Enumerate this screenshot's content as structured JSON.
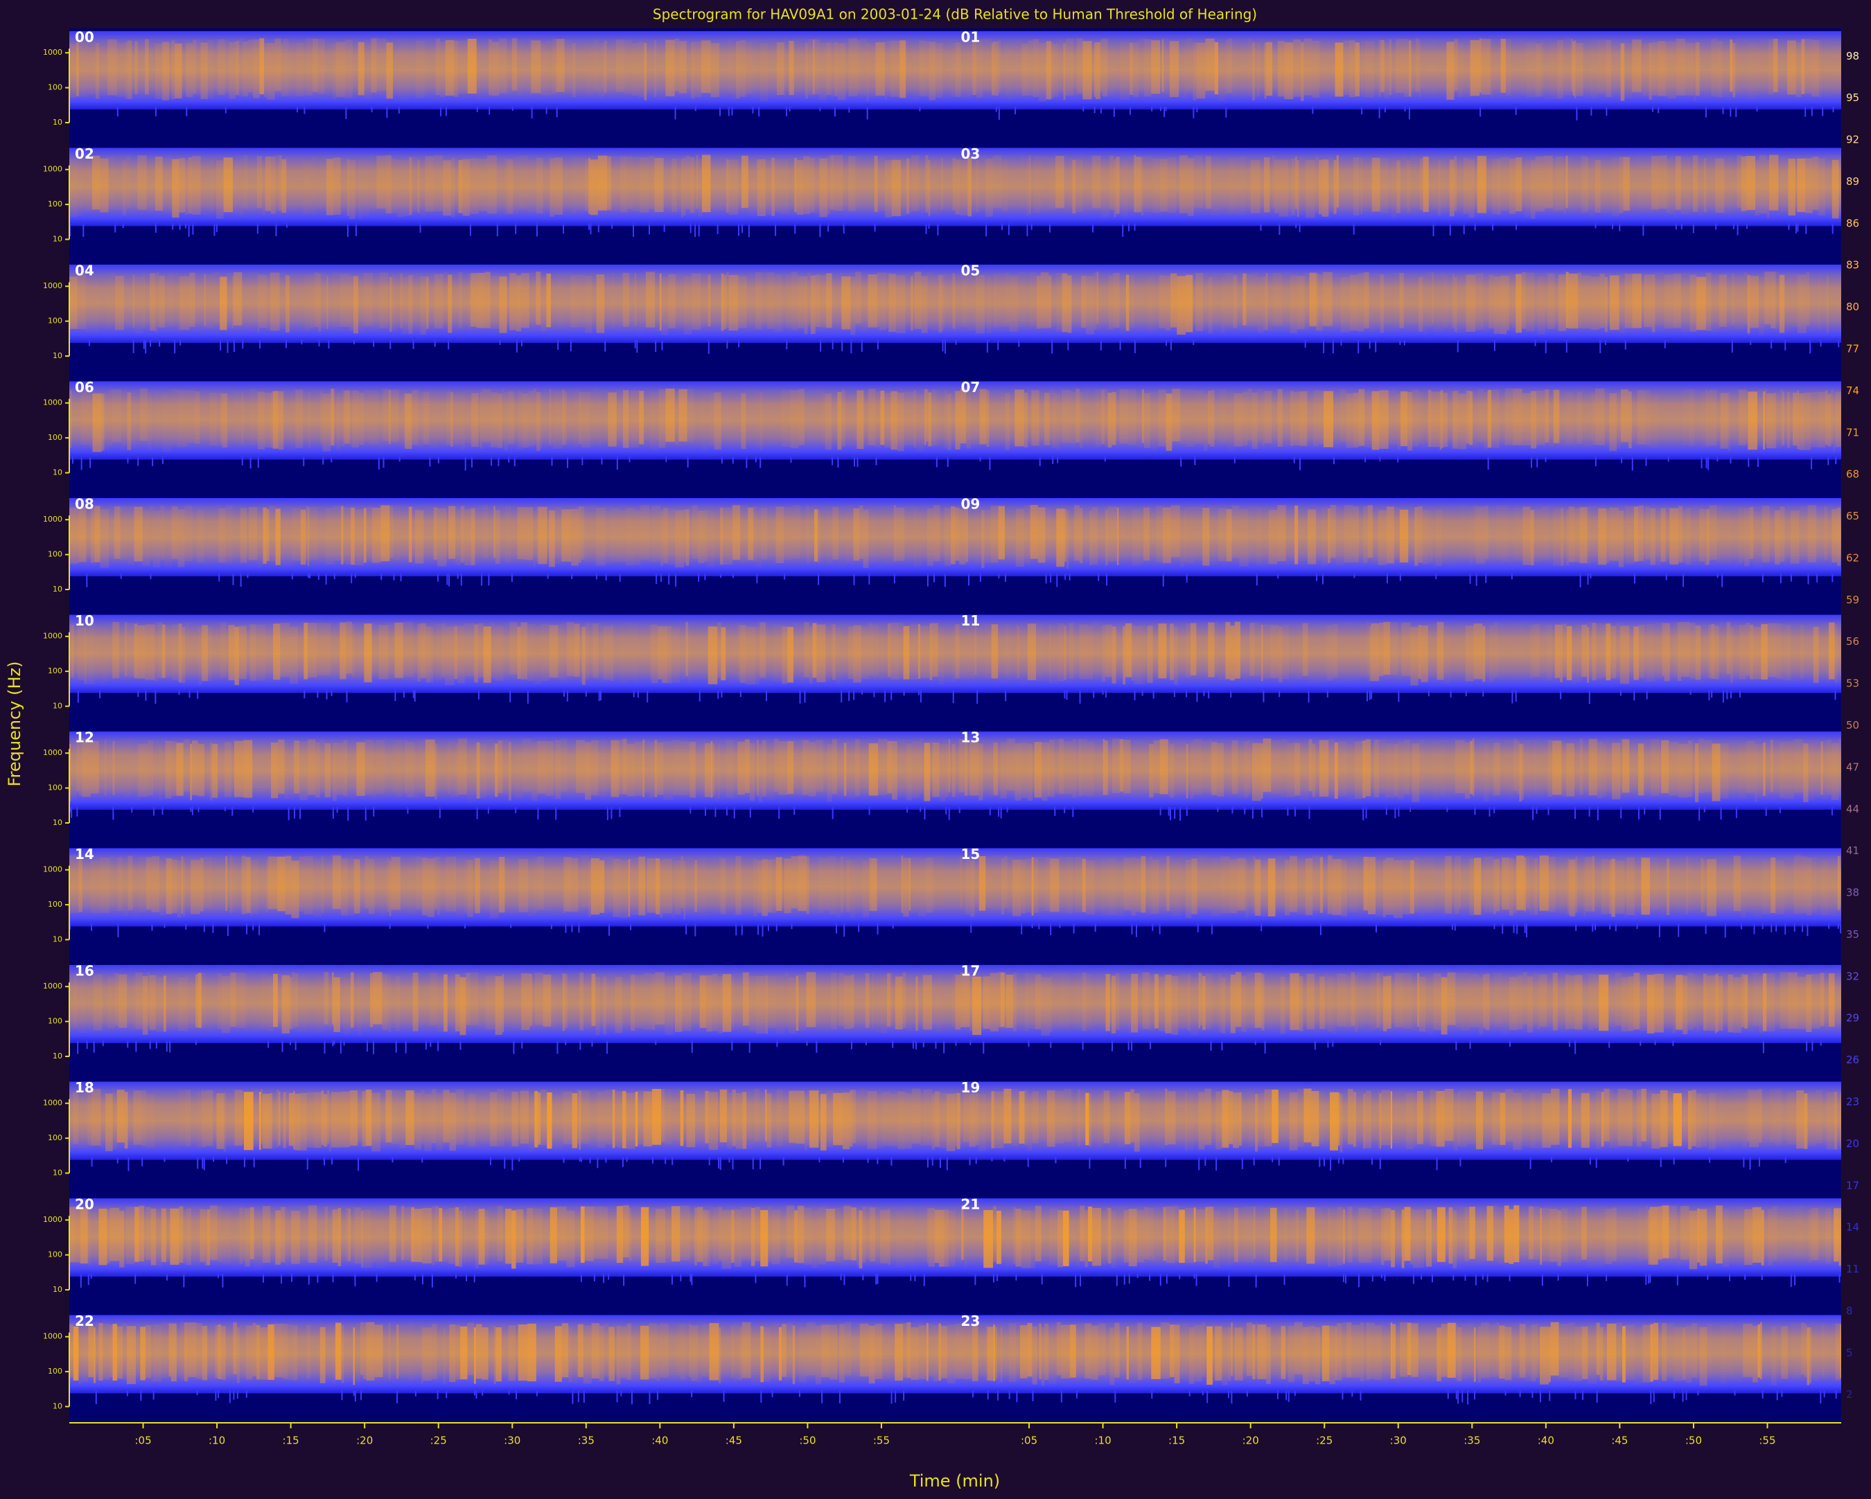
{
  "chart_data": {
    "type": "spectrogram",
    "title": "Spectrogram for HAV09A1 on 2003-01-24 (dB Relative to Human Threshold of Hearing)",
    "xlabel": "Time (min)",
    "ylabel": "Frequency (Hz)",
    "panels": [
      "00",
      "01",
      "02",
      "03",
      "04",
      "05",
      "06",
      "07",
      "08",
      "09",
      "10",
      "11",
      "12",
      "13",
      "14",
      "15",
      "16",
      "17",
      "18",
      "19",
      "20",
      "21",
      "22",
      "23"
    ],
    "xlim": [
      0,
      60
    ],
    "xticks": [
      {
        "value": 5,
        "label": ":05"
      },
      {
        "value": 10,
        "label": ":10"
      },
      {
        "value": 15,
        "label": ":15"
      },
      {
        "value": 20,
        "label": ":20"
      },
      {
        "value": 25,
        "label": ":25"
      },
      {
        "value": 30,
        "label": ":30"
      },
      {
        "value": 35,
        "label": ":35"
      },
      {
        "value": 40,
        "label": ":40"
      },
      {
        "value": 45,
        "label": ":45"
      },
      {
        "value": 50,
        "label": ":50"
      },
      {
        "value": 55,
        "label": ":55"
      }
    ],
    "ylim": [
      10,
      5000
    ],
    "yscale": "log",
    "yticks": [
      10,
      100,
      1000
    ],
    "clim": [
      0,
      100
    ],
    "cticks": [
      2,
      5,
      8,
      11,
      14,
      17,
      20,
      23,
      26,
      29,
      32,
      35,
      38,
      41,
      44,
      47,
      50,
      53,
      56,
      59,
      62,
      65,
      68,
      71,
      74,
      77,
      80,
      83,
      86,
      89,
      92,
      95,
      98
    ],
    "colormap": [
      "#2020a0",
      "#4040ff",
      "#c08060",
      "#ffa020",
      "#fff0c0"
    ]
  }
}
